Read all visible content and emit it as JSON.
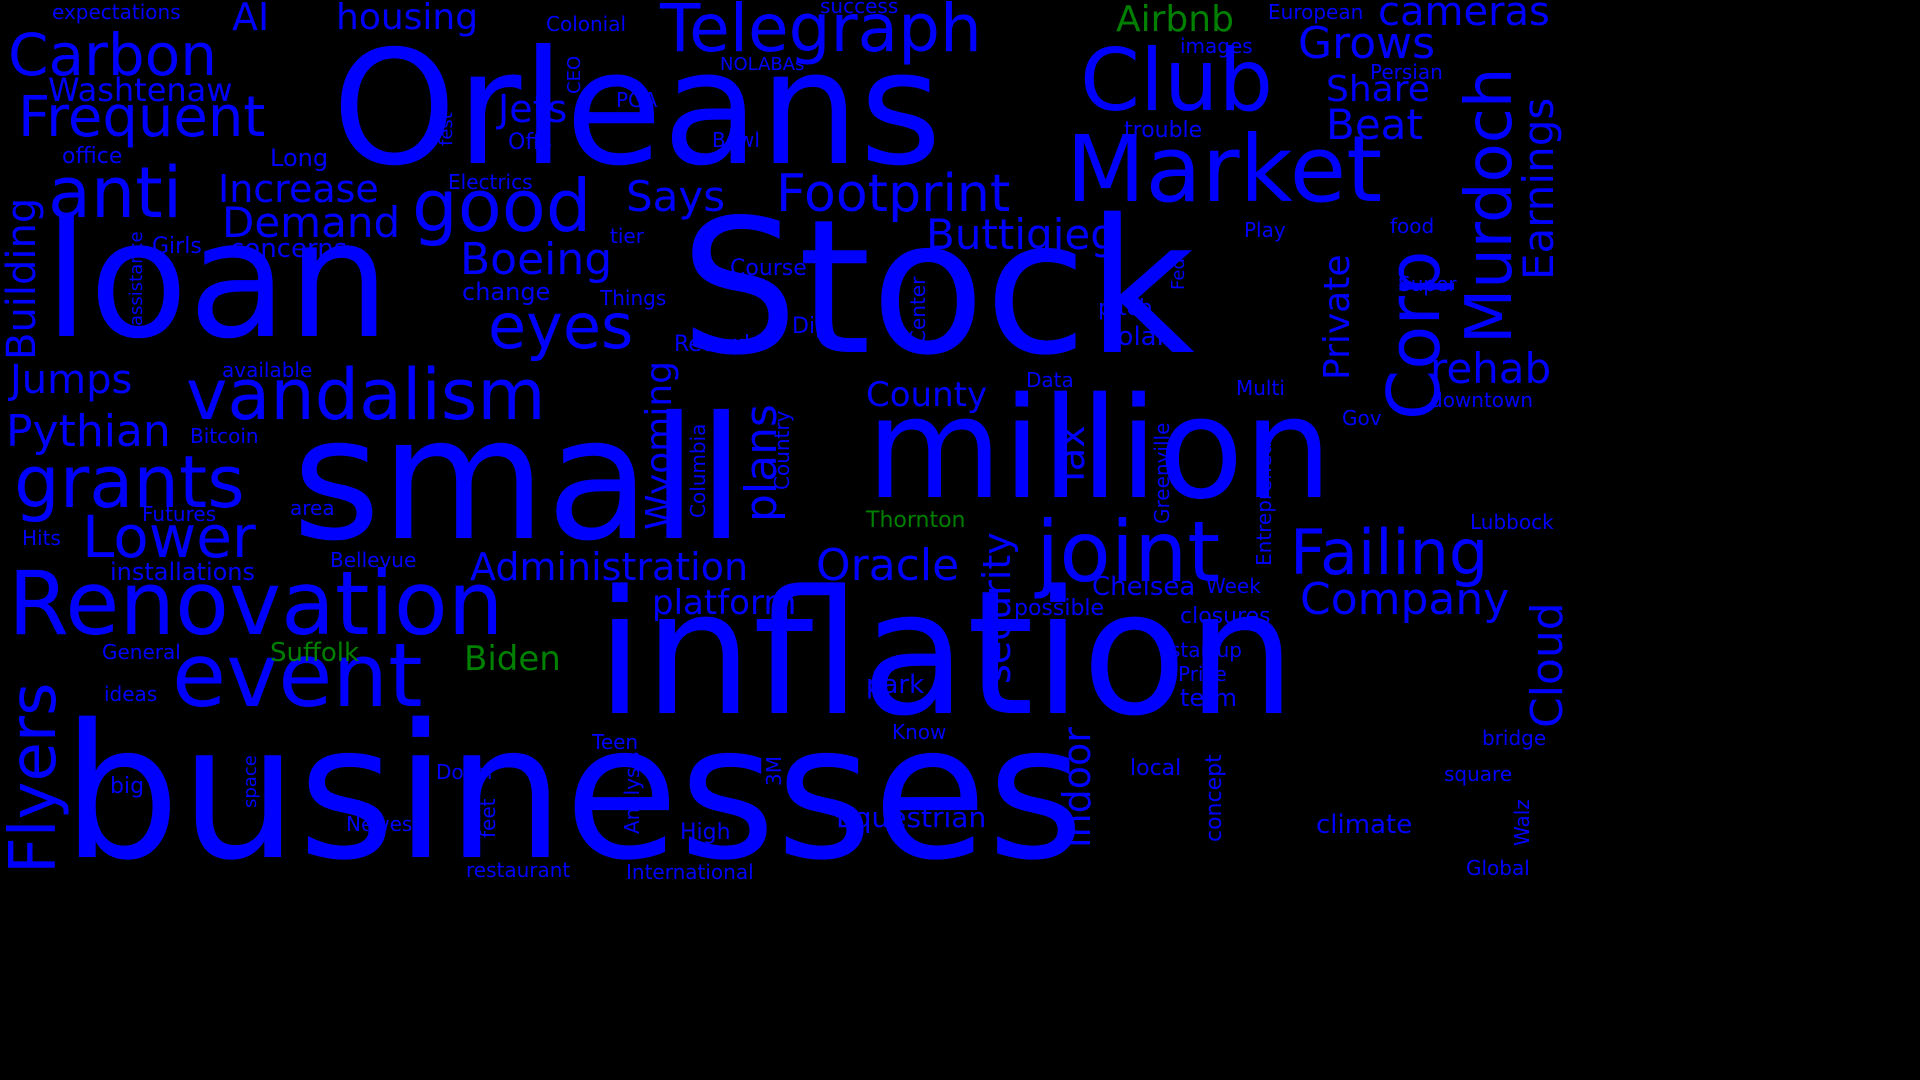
{
  "colors": {
    "background": "#000000",
    "primary": "#0000ff",
    "accent": "#008000"
  },
  "words": [
    {
      "text": "businesses",
      "color": "primary"
    },
    {
      "text": "Stock",
      "color": "primary"
    },
    {
      "text": "small",
      "color": "primary"
    },
    {
      "text": "inflation",
      "color": "primary"
    },
    {
      "text": "Orleans",
      "color": "primary"
    },
    {
      "text": "million",
      "color": "primary"
    },
    {
      "text": "loan",
      "color": "primary"
    },
    {
      "text": "Renovation",
      "color": "primary"
    },
    {
      "text": "Market",
      "color": "primary"
    },
    {
      "text": "event",
      "color": "primary"
    },
    {
      "text": "joint",
      "color": "primary"
    },
    {
      "text": "Club",
      "color": "primary"
    },
    {
      "text": "Telegraph",
      "color": "primary"
    },
    {
      "text": "vandalism",
      "color": "primary"
    },
    {
      "text": "good",
      "color": "primary"
    },
    {
      "text": "grants",
      "color": "primary"
    },
    {
      "text": "Failing",
      "color": "primary"
    },
    {
      "text": "Carbon",
      "color": "primary"
    },
    {
      "text": "anti",
      "color": "primary"
    },
    {
      "text": "Corp",
      "color": "primary"
    },
    {
      "text": "Murdoch",
      "color": "primary"
    },
    {
      "text": "Frequent",
      "color": "primary"
    },
    {
      "text": "eyes",
      "color": "primary"
    },
    {
      "text": "Footprint",
      "color": "primary"
    },
    {
      "text": "Flyers",
      "color": "primary"
    },
    {
      "text": "Lower",
      "color": "primary"
    },
    {
      "text": "Oracle",
      "color": "primary"
    },
    {
      "text": "Administration",
      "color": "primary"
    },
    {
      "text": "Company",
      "color": "primary"
    },
    {
      "text": "Cloud",
      "color": "primary"
    },
    {
      "text": "Pythian",
      "color": "primary"
    },
    {
      "text": "Boeing",
      "color": "primary"
    },
    {
      "text": "Buttigieg",
      "color": "primary"
    },
    {
      "text": "Grows",
      "color": "primary"
    },
    {
      "text": "Demand",
      "color": "primary"
    },
    {
      "text": "Increase",
      "color": "primary"
    },
    {
      "text": "Jumps",
      "color": "primary"
    },
    {
      "text": "Says",
      "color": "primary"
    },
    {
      "text": "Beat",
      "color": "primary"
    },
    {
      "text": "rehab",
      "color": "primary"
    },
    {
      "text": "Jets",
      "color": "primary"
    },
    {
      "text": "AI",
      "color": "primary"
    },
    {
      "text": "housing",
      "color": "primary"
    },
    {
      "text": "cameras",
      "color": "primary"
    },
    {
      "text": "Airbnb",
      "color": "accent"
    },
    {
      "text": "Share",
      "color": "primary"
    },
    {
      "text": "Earnings",
      "color": "primary"
    },
    {
      "text": "Washtenaw",
      "color": "primary"
    },
    {
      "text": "County",
      "color": "primary"
    },
    {
      "text": "Building",
      "color": "primary"
    },
    {
      "text": "platform",
      "color": "primary"
    },
    {
      "text": "plans",
      "color": "primary"
    },
    {
      "text": "Wyoming",
      "color": "primary"
    },
    {
      "text": "security",
      "color": "primary"
    },
    {
      "text": "Tax",
      "color": "primary"
    },
    {
      "text": "indoor",
      "color": "primary"
    },
    {
      "text": "Private",
      "color": "primary"
    },
    {
      "text": "Equestrian",
      "color": "primary"
    },
    {
      "text": "Biden",
      "color": "accent"
    },
    {
      "text": "Suffolk",
      "color": "accent"
    },
    {
      "text": "Thornton",
      "color": "accent"
    },
    {
      "text": "Chelsea",
      "color": "primary"
    },
    {
      "text": "climate",
      "color": "primary"
    },
    {
      "text": "park",
      "color": "primary"
    },
    {
      "text": "installations",
      "color": "primary"
    },
    {
      "text": "concerns",
      "color": "primary"
    },
    {
      "text": "change",
      "color": "primary"
    },
    {
      "text": "Record",
      "color": "primary"
    },
    {
      "text": "solar",
      "color": "primary"
    },
    {
      "text": "pitch",
      "color": "primary"
    },
    {
      "text": "Bitcoin",
      "color": "primary"
    },
    {
      "text": "Futures",
      "color": "primary"
    },
    {
      "text": "Long",
      "color": "primary"
    },
    {
      "text": "office",
      "color": "primary"
    },
    {
      "text": "Girls",
      "color": "primary"
    },
    {
      "text": "Electrics",
      "color": "primary"
    },
    {
      "text": "Things",
      "color": "primary"
    },
    {
      "text": "Course",
      "color": "primary"
    },
    {
      "text": "Dip",
      "color": "primary"
    },
    {
      "text": "Bowl",
      "color": "primary"
    },
    {
      "text": "PGA",
      "color": "primary"
    },
    {
      "text": "Offs",
      "color": "primary"
    },
    {
      "text": "NOLABAs",
      "color": "primary"
    },
    {
      "text": "Colonial",
      "color": "primary"
    },
    {
      "text": "expectations",
      "color": "primary"
    },
    {
      "text": "success",
      "color": "primary"
    },
    {
      "text": "European",
      "color": "primary"
    },
    {
      "text": "images",
      "color": "primary"
    },
    {
      "text": "Persian",
      "color": "primary"
    },
    {
      "text": "trouble",
      "color": "primary"
    },
    {
      "text": "food",
      "color": "primary"
    },
    {
      "text": "Play",
      "color": "primary"
    },
    {
      "text": "Super",
      "color": "primary"
    },
    {
      "text": "Multi",
      "color": "primary"
    },
    {
      "text": "downtown",
      "color": "primary"
    },
    {
      "text": "Gov",
      "color": "primary"
    },
    {
      "text": "Data",
      "color": "primary"
    },
    {
      "text": "Lubbock",
      "color": "primary"
    },
    {
      "text": "Week",
      "color": "primary"
    },
    {
      "text": "closures",
      "color": "primary"
    },
    {
      "text": "possible",
      "color": "primary"
    },
    {
      "text": "startup",
      "color": "primary"
    },
    {
      "text": "Price",
      "color": "primary"
    },
    {
      "text": "term",
      "color": "primary"
    },
    {
      "text": "bridge",
      "color": "primary"
    },
    {
      "text": "square",
      "color": "primary"
    },
    {
      "text": "Global",
      "color": "primary"
    },
    {
      "text": "local",
      "color": "primary"
    },
    {
      "text": "Know",
      "color": "primary"
    },
    {
      "text": "High",
      "color": "primary"
    },
    {
      "text": "Teen",
      "color": "primary"
    },
    {
      "text": "Dollar",
      "color": "primary"
    },
    {
      "text": "Newest",
      "color": "primary"
    },
    {
      "text": "restaurant",
      "color": "primary"
    },
    {
      "text": "International",
      "color": "primary"
    },
    {
      "text": "big",
      "color": "primary"
    },
    {
      "text": "ideas",
      "color": "primary"
    },
    {
      "text": "General",
      "color": "primary"
    },
    {
      "text": "Hits",
      "color": "primary"
    },
    {
      "text": "area",
      "color": "primary"
    },
    {
      "text": "Bellevue",
      "color": "primary"
    },
    {
      "text": "available",
      "color": "primary"
    },
    {
      "text": "tier",
      "color": "primary"
    },
    {
      "text": "assistance",
      "color": "primary"
    },
    {
      "text": "fest",
      "color": "primary"
    },
    {
      "text": "CEO",
      "color": "primary"
    },
    {
      "text": "Fed",
      "color": "primary"
    },
    {
      "text": "Center",
      "color": "primary"
    },
    {
      "text": "Country",
      "color": "primary"
    },
    {
      "text": "Columbia",
      "color": "primary"
    },
    {
      "text": "Greenville",
      "color": "primary"
    },
    {
      "text": "Entrepreneur",
      "color": "primary"
    },
    {
      "text": "Analysis",
      "color": "primary"
    },
    {
      "text": "3M",
      "color": "primary"
    },
    {
      "text": "feet",
      "color": "primary"
    },
    {
      "text": "concept",
      "color": "primary"
    },
    {
      "text": "Walz",
      "color": "primary"
    },
    {
      "text": "space",
      "color": "primary"
    },
    {
      "text": "B",
      "color": "primary"
    },
    {
      "text": "s",
      "color": "primary"
    },
    {
      "text": "c",
      "color": "primary"
    }
  ]
}
